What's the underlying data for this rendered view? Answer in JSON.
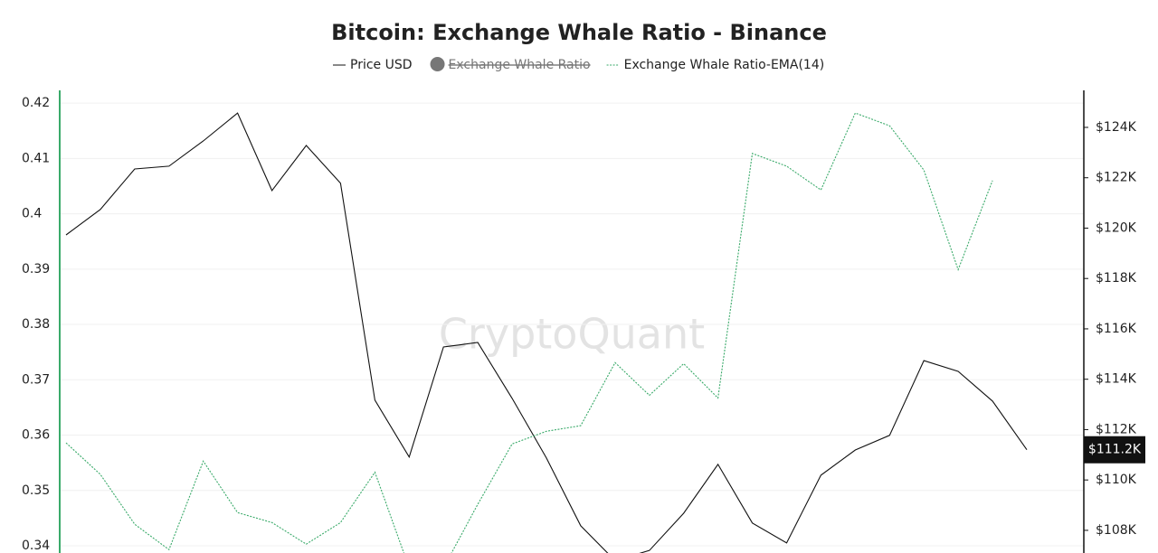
{
  "chart_data": {
    "type": "line",
    "title": "Bitcoin: Exchange Whale Ratio - Binance",
    "watermark": "CryptoQuant",
    "categories": [
      null,
      null,
      null,
      null,
      null,
      null,
      null,
      null,
      null,
      null,
      null,
      null,
      null,
      null,
      null,
      null,
      null,
      null,
      null,
      null,
      null,
      null,
      null,
      null,
      null,
      null,
      null,
      null,
      null
    ],
    "ylim": [
      0.3387,
      0.4223
    ],
    "yticks": [
      0.34,
      0.35,
      0.36,
      0.37,
      0.38,
      0.39,
      0.4,
      0.41,
      0.42
    ],
    "y2lim": [
      107100,
      125470
    ],
    "y2ticks": [
      {
        "value": 108000,
        "label": "$108K"
      },
      {
        "value": 110000,
        "label": "$110K"
      },
      {
        "value": 112000,
        "label": "$112K"
      },
      {
        "value": 114000,
        "label": "$114K"
      },
      {
        "value": 116000,
        "label": "$116K"
      },
      {
        "value": 118000,
        "label": "$118K"
      },
      {
        "value": 120000,
        "label": "$120K"
      },
      {
        "value": 122000,
        "label": "$122K"
      },
      {
        "value": 124000,
        "label": "$124K"
      }
    ],
    "grid": true,
    "series": [
      {
        "name": "Price USD",
        "color": "#111111",
        "axis": "y2",
        "values": [
          119730,
          120740,
          122350,
          122460,
          123460,
          124570,
          121490,
          123280,
          121780,
          113170,
          110910,
          115280,
          115460,
          113240,
          110870,
          108180,
          106800,
          107200,
          108680,
          110620,
          108290,
          107500,
          110190,
          111190,
          111770,
          114740,
          114310,
          113130,
          111200
        ],
        "value_labels": [
          null,
          null,
          null,
          null,
          null,
          null,
          null,
          null,
          null,
          null,
          null,
          null,
          null,
          null,
          null,
          null,
          null,
          null,
          null,
          null,
          null,
          null,
          null,
          null,
          null,
          null,
          null,
          null,
          "$111.2K"
        ]
      },
      {
        "name": "Exchange Whale Ratio",
        "color": "#777777",
        "hidden": true
      },
      {
        "name": "Exchange Whale Ratio-EMA(14)",
        "color": "#3aaa6a",
        "dashed": true,
        "values": [
          0.3586,
          0.3529,
          0.3439,
          0.3393,
          0.3553,
          0.346,
          0.3442,
          0.3403,
          0.3442,
          0.3533,
          0.336,
          0.336,
          0.3475,
          0.3584,
          0.3607,
          0.3617,
          0.3731,
          0.3672,
          0.3729,
          0.3667,
          0.4109,
          0.4086,
          0.4043,
          0.4182,
          0.4159,
          0.4079,
          0.3899,
          0.406,
          null
        ]
      }
    ]
  }
}
